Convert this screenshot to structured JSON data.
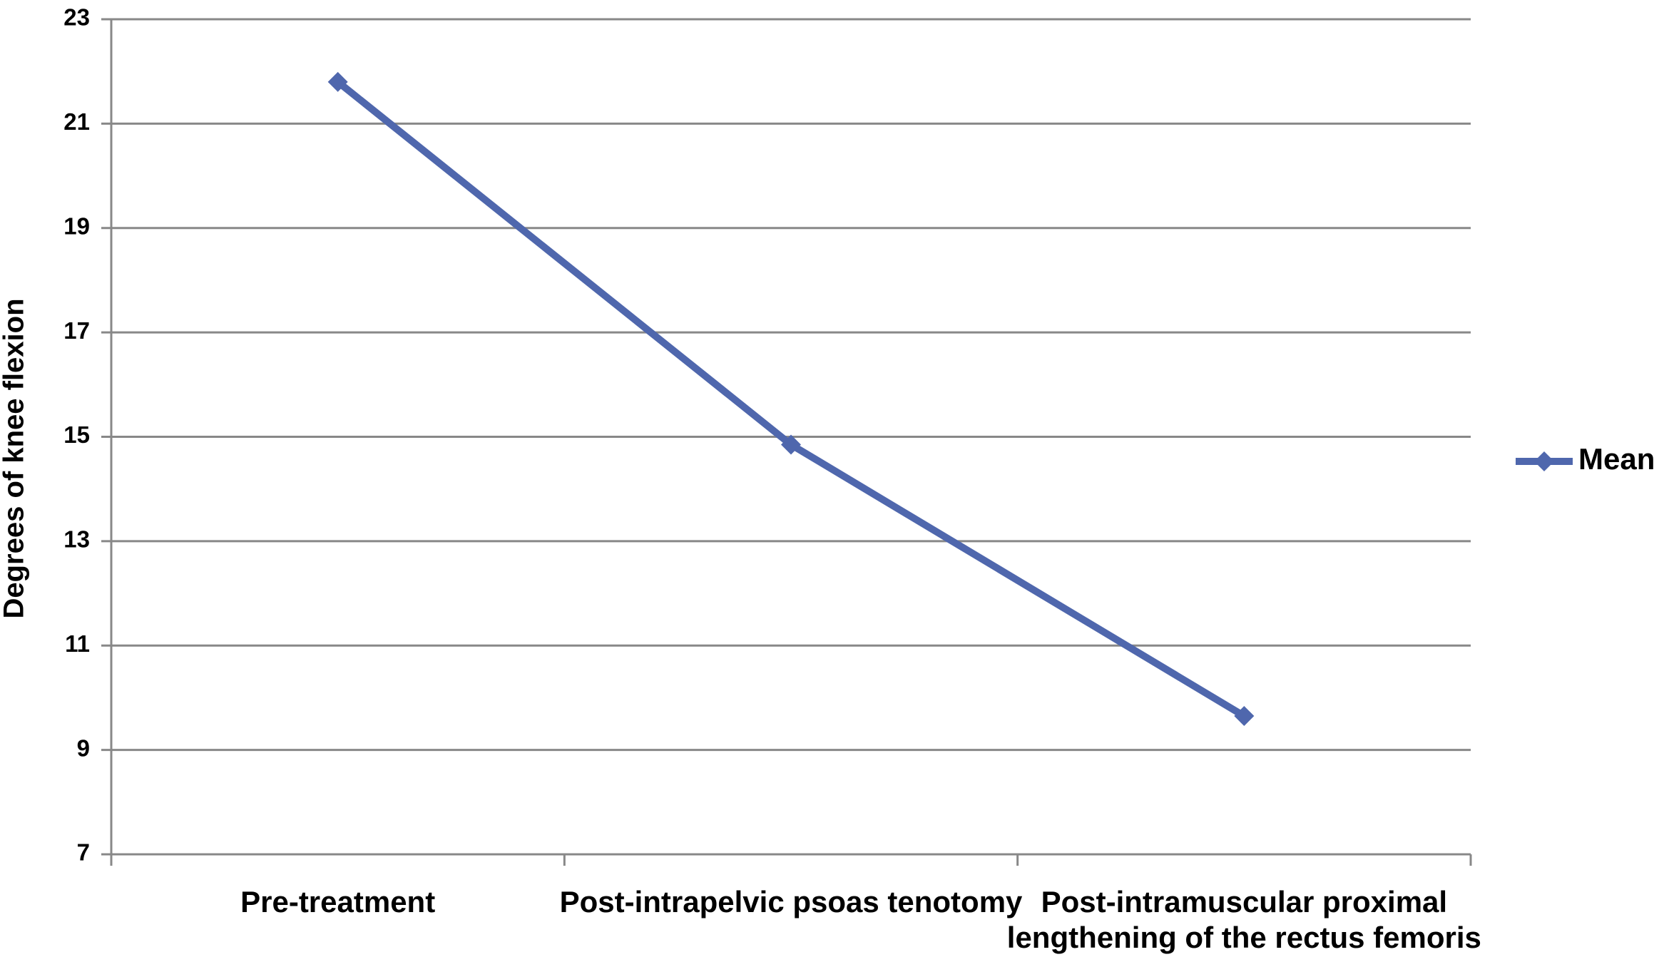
{
  "chart_data": {
    "type": "line",
    "y_label": "Degrees of knee flexion",
    "categories": [
      "Pre-treatment",
      "Post-intrapelvic psoas tenotomy",
      "Post-intramuscular proximal lengthening of the rectus femoris"
    ],
    "series": [
      {
        "name": "Mean",
        "color": "#4f67ad",
        "values": [
          21.8,
          14.85,
          9.65
        ]
      }
    ],
    "ylim": [
      7,
      23
    ],
    "yticks": [
      7,
      9,
      11,
      13,
      15,
      17,
      19,
      21,
      23
    ],
    "grid": true,
    "legend": "right"
  }
}
